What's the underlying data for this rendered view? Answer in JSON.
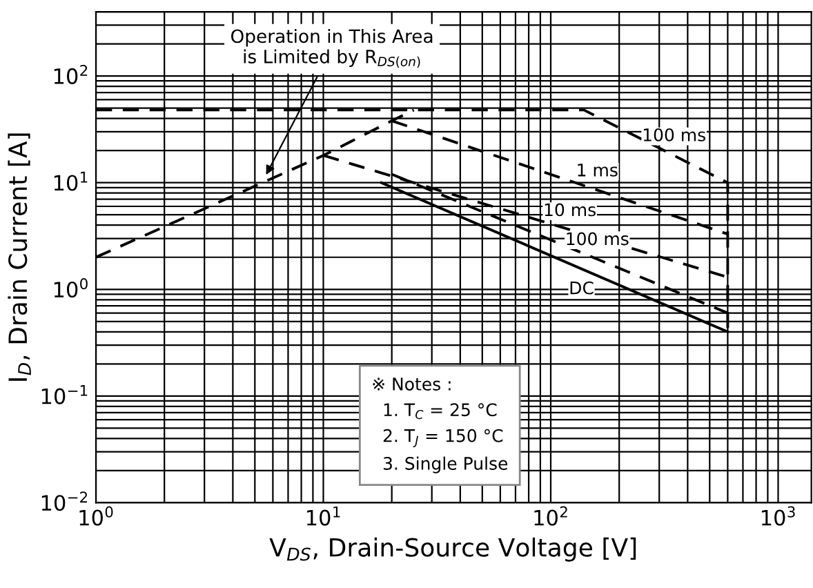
{
  "chart_data": {
    "type": "line",
    "xlabel": "V$_{DS}$, Drain-Source Voltage [V]",
    "ylabel": "I$_{D}$, Drain Current [A]",
    "log": "xy",
    "xlim": [
      1,
      1400
    ],
    "ylim": [
      0.01,
      400
    ],
    "xticks": [
      {
        "value": 1,
        "label": "10$^{0}$"
      },
      {
        "value": 10,
        "label": "10$^{1}$"
      },
      {
        "value": 100,
        "label": "10$^{2}$"
      },
      {
        "value": 1000,
        "label": "10$^{3}$"
      }
    ],
    "yticks": [
      {
        "value": 0.01,
        "label": "10$^{−2}$"
      },
      {
        "value": 0.1,
        "label": "10$^{−1}$"
      },
      {
        "value": 1,
        "label": "10$^{0}$"
      },
      {
        "value": 10,
        "label": "10$^{1}$"
      },
      {
        "value": 100,
        "label": "10$^{2}$"
      }
    ],
    "grid": true,
    "series": [
      {
        "color": "#000000",
        "line_style": "dashed",
        "x": [
          1,
          10,
          20,
          25
        ],
        "values": [
          2,
          18,
          38,
          48
        ]
      },
      {
        "name": "100 ms",
        "color": "#000000",
        "line_style": "dashed",
        "x": [
          1,
          140,
          600,
          600
        ],
        "values": [
          48,
          48,
          10,
          0.4
        ]
      },
      {
        "name": "1 ms",
        "color": "#000000",
        "line_style": "dashed",
        "x": [
          20,
          600
        ],
        "values": [
          38,
          3.3
        ]
      },
      {
        "name": "10 ms",
        "color": "#000000",
        "line_style": "dashed",
        "x": [
          10,
          600
        ],
        "values": [
          18,
          1.3
        ]
      },
      {
        "name": "100 ms",
        "color": "#000000",
        "line_style": "dashed",
        "x": [
          20,
          600
        ],
        "values": [
          12,
          0.6
        ]
      },
      {
        "name": "DC",
        "color": "#000000",
        "line_style": "solid",
        "x": [
          18,
          600
        ],
        "values": [
          10,
          0.4
        ]
      }
    ],
    "annotations": [
      {
        "text": "Operation in This Area\nis Limited by R$_{DS(on)}$",
        "x": 5.5,
        "y": 11
      },
      "※ Notes :\n  1. T$_{C}$ = 25 °C\n  2. T$_{J}$ = 150 °C\n  3. Single Pulse"
    ]
  }
}
